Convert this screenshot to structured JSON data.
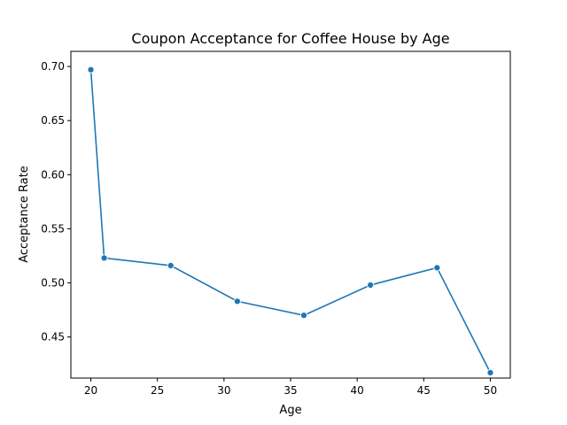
{
  "chart_data": {
    "type": "line",
    "title": "Coupon Acceptance for Coffee House by Age",
    "xlabel": "Age",
    "ylabel": "Acceptance Rate",
    "x": [
      20,
      21,
      26,
      31,
      36,
      41,
      46,
      50
    ],
    "series": [
      {
        "values": [
          0.697,
          0.523,
          0.516,
          0.483,
          0.47,
          0.498,
          0.514,
          0.417
        ]
      }
    ],
    "xlim": [
      18.5,
      51.5
    ],
    "ylim": [
      0.412,
      0.714
    ],
    "xticks": [
      20,
      25,
      30,
      35,
      40,
      45,
      50
    ],
    "xtick_labels": [
      "20",
      "25",
      "30",
      "35",
      "40",
      "45",
      "50"
    ],
    "yticks": [
      0.45,
      0.5,
      0.55,
      0.6,
      0.65,
      0.7
    ],
    "ytick_labels": [
      "0.45",
      "0.50",
      "0.55",
      "0.60",
      "0.65",
      "0.70"
    ],
    "grid": false,
    "line_color": "#1f77b4",
    "marker": "circle"
  }
}
